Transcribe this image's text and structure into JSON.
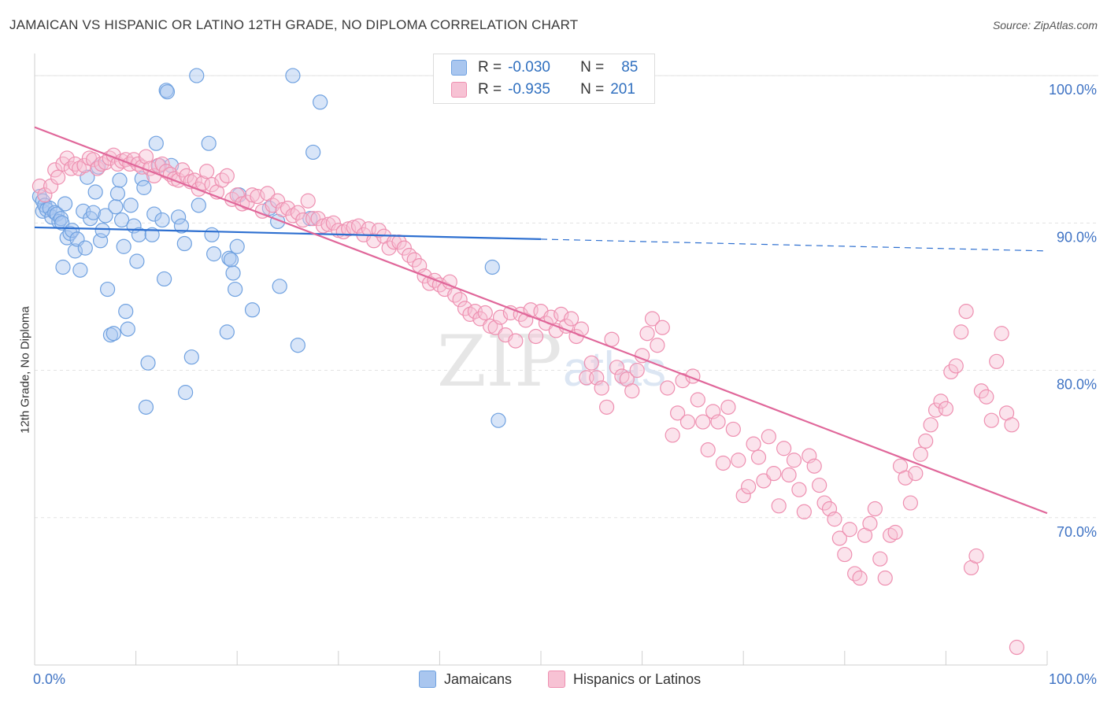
{
  "title": "JAMAICAN VS HISPANIC OR LATINO 12TH GRADE, NO DIPLOMA CORRELATION CHART",
  "source": "Source: ZipAtlas.com",
  "colors": {
    "blue": "#6fa1e0",
    "blue_fill": "#a9c6ef",
    "blue_line": "#2d6fd0",
    "pink": "#ee8fb0",
    "pink_fill": "#f7c2d4",
    "pink_line": "#e0679a",
    "axis_text": "#3f73c4",
    "grid": "#e3e3e3"
  },
  "legend": {
    "row1": {
      "r_label": "R =",
      "r_value": "-0.030",
      "n_label": "N =",
      "n_value": "85"
    },
    "row2": {
      "r_label": "R =",
      "r_value": "-0.935",
      "n_label": "N =",
      "n_value": "201"
    }
  },
  "watermark": {
    "zip": "ZIP",
    "atlas": "atlas"
  },
  "chart_data": {
    "type": "scatter",
    "xlabel": "",
    "ylabel": "12th Grade, No Diploma",
    "xlim": [
      0,
      100
    ],
    "ylim": [
      60.0,
      101.5
    ],
    "x_tick_labels": {
      "min": "0.0%",
      "max": "100.0%"
    },
    "y_ticks": [
      {
        "value": 100,
        "label": "100.0%"
      },
      {
        "value": 90,
        "label": "90.0%"
      },
      {
        "value": 80,
        "label": "80.0%"
      },
      {
        "value": 70,
        "label": "70.0%"
      }
    ],
    "grid": true,
    "legend_position": "bottom",
    "series": [
      {
        "name": "Jamaicans",
        "color": "#6fa1e0",
        "trend": {
          "x0": 0,
          "y0": 89.7,
          "x1": 50,
          "y1": 88.9,
          "dashed_to_x": 100,
          "dashed_y": 88.1
        },
        "points": [
          [
            0.5,
            91.8
          ],
          [
            0.8,
            91.5
          ],
          [
            0.8,
            90.8
          ],
          [
            1.0,
            91.2
          ],
          [
            1.2,
            90.9
          ],
          [
            1.5,
            91.0
          ],
          [
            1.7,
            90.4
          ],
          [
            2.0,
            90.7
          ],
          [
            2.2,
            90.6
          ],
          [
            2.4,
            90.1
          ],
          [
            2.6,
            90.3
          ],
          [
            2.7,
            90.0
          ],
          [
            2.8,
            87.0
          ],
          [
            3.0,
            91.3
          ],
          [
            3.2,
            89.0
          ],
          [
            3.5,
            89.3
          ],
          [
            3.7,
            89.5
          ],
          [
            4.0,
            88.1
          ],
          [
            4.2,
            88.9
          ],
          [
            4.5,
            86.8
          ],
          [
            4.8,
            90.8
          ],
          [
            5.0,
            88.3
          ],
          [
            5.2,
            93.1
          ],
          [
            5.5,
            90.3
          ],
          [
            5.8,
            90.7
          ],
          [
            6.0,
            92.1
          ],
          [
            6.3,
            93.8
          ],
          [
            6.5,
            88.8
          ],
          [
            6.7,
            89.5
          ],
          [
            7.0,
            90.5
          ],
          [
            7.2,
            85.5
          ],
          [
            7.5,
            82.4
          ],
          [
            7.8,
            82.5
          ],
          [
            8.0,
            91.1
          ],
          [
            8.2,
            92.0
          ],
          [
            8.4,
            92.9
          ],
          [
            8.6,
            90.2
          ],
          [
            8.8,
            88.4
          ],
          [
            9.0,
            84.0
          ],
          [
            9.2,
            82.8
          ],
          [
            9.5,
            91.2
          ],
          [
            9.8,
            89.8
          ],
          [
            10.1,
            87.4
          ],
          [
            10.3,
            89.2
          ],
          [
            10.6,
            93.0
          ],
          [
            10.8,
            92.4
          ],
          [
            11.0,
            77.5
          ],
          [
            11.2,
            80.5
          ],
          [
            11.6,
            89.2
          ],
          [
            11.8,
            90.6
          ],
          [
            12.0,
            95.4
          ],
          [
            12.3,
            93.9
          ],
          [
            12.6,
            90.2
          ],
          [
            12.8,
            86.2
          ],
          [
            13.0,
            99.0
          ],
          [
            13.1,
            98.9
          ],
          [
            13.5,
            93.9
          ],
          [
            14.2,
            90.4
          ],
          [
            14.5,
            89.8
          ],
          [
            14.8,
            88.6
          ],
          [
            14.9,
            78.5
          ],
          [
            15.5,
            80.9
          ],
          [
            16.0,
            100.0
          ],
          [
            16.2,
            91.2
          ],
          [
            17.2,
            95.4
          ],
          [
            17.5,
            89.2
          ],
          [
            17.7,
            87.9
          ],
          [
            19.0,
            82.6
          ],
          [
            19.2,
            87.6
          ],
          [
            19.4,
            87.5
          ],
          [
            19.6,
            86.6
          ],
          [
            19.8,
            85.5
          ],
          [
            20.0,
            88.4
          ],
          [
            20.2,
            91.9
          ],
          [
            21.5,
            84.1
          ],
          [
            23.2,
            91.0
          ],
          [
            24.0,
            90.1
          ],
          [
            24.2,
            85.7
          ],
          [
            25.5,
            100.0
          ],
          [
            26.0,
            81.7
          ],
          [
            27.2,
            90.3
          ],
          [
            27.5,
            94.8
          ],
          [
            28.2,
            98.2
          ],
          [
            45.2,
            87.0
          ],
          [
            45.8,
            76.6
          ]
        ]
      },
      {
        "name": "Hispanics or Latinos",
        "color": "#ee8fb0",
        "trend": {
          "x0": 0,
          "y0": 96.5,
          "x1": 100,
          "y1": 70.3
        },
        "points": [
          [
            0.5,
            92.5
          ],
          [
            1.0,
            91.9
          ],
          [
            1.6,
            92.5
          ],
          [
            2.0,
            93.6
          ],
          [
            2.3,
            93.1
          ],
          [
            2.8,
            94.0
          ],
          [
            3.2,
            94.4
          ],
          [
            3.6,
            93.7
          ],
          [
            4.0,
            94.0
          ],
          [
            4.4,
            93.7
          ],
          [
            4.9,
            93.9
          ],
          [
            5.4,
            94.4
          ],
          [
            5.8,
            94.3
          ],
          [
            6.2,
            93.7
          ],
          [
            6.6,
            94.0
          ],
          [
            7.0,
            94.1
          ],
          [
            7.4,
            94.4
          ],
          [
            7.8,
            94.6
          ],
          [
            8.2,
            94.0
          ],
          [
            8.6,
            94.2
          ],
          [
            9.0,
            94.3
          ],
          [
            9.4,
            94.0
          ],
          [
            9.8,
            94.3
          ],
          [
            10.2,
            94.0
          ],
          [
            10.6,
            93.8
          ],
          [
            11.0,
            94.5
          ],
          [
            11.4,
            93.7
          ],
          [
            11.8,
            93.2
          ],
          [
            12.2,
            93.9
          ],
          [
            12.6,
            94.0
          ],
          [
            13.0,
            93.5
          ],
          [
            13.4,
            93.3
          ],
          [
            13.8,
            93.0
          ],
          [
            14.2,
            92.9
          ],
          [
            14.6,
            93.6
          ],
          [
            15.0,
            93.2
          ],
          [
            15.4,
            92.8
          ],
          [
            15.8,
            92.9
          ],
          [
            16.2,
            92.3
          ],
          [
            16.6,
            92.7
          ],
          [
            17.0,
            93.5
          ],
          [
            17.5,
            92.6
          ],
          [
            18.0,
            92.1
          ],
          [
            18.5,
            92.9
          ],
          [
            19.0,
            93.2
          ],
          [
            19.5,
            91.6
          ],
          [
            20.0,
            91.9
          ],
          [
            20.5,
            91.3
          ],
          [
            21.0,
            91.4
          ],
          [
            21.5,
            91.9
          ],
          [
            22.0,
            91.8
          ],
          [
            22.5,
            90.8
          ],
          [
            23.0,
            92.0
          ],
          [
            23.5,
            91.2
          ],
          [
            24.0,
            91.5
          ],
          [
            24.5,
            90.9
          ],
          [
            25.0,
            91.0
          ],
          [
            25.5,
            90.5
          ],
          [
            26.0,
            90.7
          ],
          [
            26.5,
            90.2
          ],
          [
            27.0,
            91.5
          ],
          [
            27.5,
            90.3
          ],
          [
            28.0,
            90.3
          ],
          [
            28.5,
            89.8
          ],
          [
            29.0,
            89.9
          ],
          [
            29.5,
            90.0
          ],
          [
            30.0,
            89.5
          ],
          [
            30.5,
            89.4
          ],
          [
            31.0,
            89.6
          ],
          [
            31.5,
            89.7
          ],
          [
            32.0,
            89.8
          ],
          [
            32.5,
            89.2
          ],
          [
            33.0,
            89.6
          ],
          [
            33.5,
            88.8
          ],
          [
            34.0,
            89.5
          ],
          [
            34.5,
            89.1
          ],
          [
            35.0,
            88.3
          ],
          [
            35.5,
            88.7
          ],
          [
            36.0,
            88.7
          ],
          [
            36.5,
            88.3
          ],
          [
            37.0,
            87.8
          ],
          [
            37.5,
            87.5
          ],
          [
            38.0,
            87.1
          ],
          [
            38.5,
            86.4
          ],
          [
            39.0,
            85.9
          ],
          [
            39.5,
            86.1
          ],
          [
            40.0,
            85.8
          ],
          [
            40.5,
            85.5
          ],
          [
            41.0,
            86.0
          ],
          [
            41.5,
            85.1
          ],
          [
            42.0,
            84.8
          ],
          [
            42.5,
            84.2
          ],
          [
            43.0,
            83.8
          ],
          [
            43.5,
            84.0
          ],
          [
            44.0,
            83.5
          ],
          [
            44.5,
            83.9
          ],
          [
            45.0,
            83.0
          ],
          [
            45.5,
            82.9
          ],
          [
            46.0,
            83.6
          ],
          [
            46.5,
            82.4
          ],
          [
            47.0,
            83.9
          ],
          [
            47.5,
            82.0
          ],
          [
            48.0,
            83.8
          ],
          [
            48.5,
            83.4
          ],
          [
            49.0,
            84.1
          ],
          [
            49.5,
            82.3
          ],
          [
            50.0,
            84.0
          ],
          [
            50.5,
            83.2
          ],
          [
            51.0,
            83.6
          ],
          [
            51.5,
            82.7
          ],
          [
            52.0,
            83.8
          ],
          [
            52.5,
            83.0
          ],
          [
            53.0,
            83.5
          ],
          [
            53.5,
            82.3
          ],
          [
            54.0,
            82.8
          ],
          [
            54.5,
            79.5
          ],
          [
            55.0,
            80.5
          ],
          [
            55.5,
            79.5
          ],
          [
            56.0,
            78.8
          ],
          [
            56.5,
            77.5
          ],
          [
            57.0,
            82.1
          ],
          [
            57.5,
            80.2
          ],
          [
            58.0,
            79.6
          ],
          [
            58.5,
            79.4
          ],
          [
            59.0,
            78.6
          ],
          [
            59.5,
            80.0
          ],
          [
            60.0,
            81.0
          ],
          [
            60.5,
            82.5
          ],
          [
            61.0,
            83.5
          ],
          [
            61.5,
            81.7
          ],
          [
            62.0,
            82.9
          ],
          [
            62.5,
            78.8
          ],
          [
            63.0,
            75.6
          ],
          [
            63.5,
            77.1
          ],
          [
            64.0,
            79.3
          ],
          [
            64.5,
            76.5
          ],
          [
            65.0,
            79.6
          ],
          [
            65.5,
            78.0
          ],
          [
            66.0,
            76.5
          ],
          [
            66.5,
            74.6
          ],
          [
            67.0,
            77.2
          ],
          [
            67.5,
            76.5
          ],
          [
            68.0,
            73.7
          ],
          [
            68.5,
            77.5
          ],
          [
            69.0,
            76.0
          ],
          [
            69.5,
            73.9
          ],
          [
            70.0,
            71.5
          ],
          [
            70.5,
            72.1
          ],
          [
            71.0,
            75.0
          ],
          [
            71.5,
            74.1
          ],
          [
            72.0,
            72.5
          ],
          [
            72.5,
            75.5
          ],
          [
            73.0,
            73.0
          ],
          [
            73.5,
            70.8
          ],
          [
            74.0,
            74.7
          ],
          [
            74.5,
            72.9
          ],
          [
            75.0,
            73.9
          ],
          [
            75.5,
            71.9
          ],
          [
            76.0,
            70.4
          ],
          [
            76.5,
            74.2
          ],
          [
            77.0,
            73.5
          ],
          [
            77.5,
            72.2
          ],
          [
            78.0,
            71.0
          ],
          [
            78.5,
            70.6
          ],
          [
            79.0,
            69.9
          ],
          [
            79.5,
            68.6
          ],
          [
            80.0,
            67.5
          ],
          [
            80.5,
            69.2
          ],
          [
            81.0,
            66.2
          ],
          [
            81.5,
            65.9
          ],
          [
            82.0,
            68.8
          ],
          [
            82.5,
            69.6
          ],
          [
            83.0,
            70.6
          ],
          [
            83.5,
            67.2
          ],
          [
            84.0,
            65.9
          ],
          [
            84.5,
            68.8
          ],
          [
            85.0,
            69.0
          ],
          [
            85.5,
            73.5
          ],
          [
            86.0,
            72.7
          ],
          [
            86.5,
            71.0
          ],
          [
            87.0,
            73.0
          ],
          [
            87.5,
            74.3
          ],
          [
            88.0,
            75.2
          ],
          [
            88.5,
            76.3
          ],
          [
            89.0,
            77.3
          ],
          [
            89.5,
            77.9
          ],
          [
            90.0,
            77.4
          ],
          [
            90.5,
            79.9
          ],
          [
            91.0,
            80.3
          ],
          [
            91.5,
            82.6
          ],
          [
            92.0,
            84.0
          ],
          [
            92.5,
            66.6
          ],
          [
            93.0,
            67.4
          ],
          [
            93.5,
            78.6
          ],
          [
            94.0,
            78.2
          ],
          [
            94.5,
            76.6
          ],
          [
            95.0,
            80.6
          ],
          [
            95.5,
            82.5
          ],
          [
            96.0,
            77.1
          ],
          [
            96.5,
            76.3
          ],
          [
            97.0,
            61.2
          ]
        ]
      }
    ]
  },
  "bottom_legend": {
    "item1": "Jamaicans",
    "item2": "Hispanics or Latinos"
  }
}
